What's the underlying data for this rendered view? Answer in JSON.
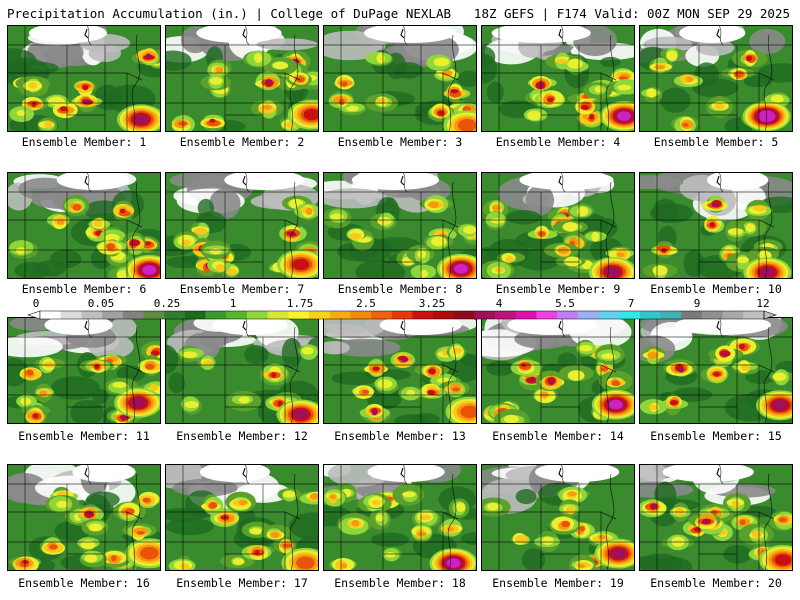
{
  "header": {
    "left_text": "Precipitation Accumulation (in.) | College of DuPage NEXLAB",
    "right_text": "18Z GEFS | F174 Valid: 00Z MON SEP 29 2025"
  },
  "legend": {
    "tick_labels": [
      "0",
      "0.05",
      "0.25",
      "1",
      "1.75",
      "2.5",
      "3.25",
      "4",
      "5.5",
      "7",
      "9",
      "12"
    ],
    "colors": [
      "#ffffff",
      "#dcdcdc",
      "#bebebe",
      "#a0a0a0",
      "#828282",
      "#5a8e3c",
      "#2f7d32",
      "#1e6b1e",
      "#3a9a2a",
      "#55b82a",
      "#8fd63a",
      "#d8e830",
      "#f5f52a",
      "#f9d21a",
      "#f7ad10",
      "#f58a0a",
      "#f2620a",
      "#e63a0a",
      "#d01010",
      "#b00a0a",
      "#900a1a",
      "#a0105a",
      "#c0107a",
      "#e010b0",
      "#f040e0",
      "#c07ef0",
      "#9ab0f0",
      "#60d0f0",
      "#30e8e8",
      "#30c8c8",
      "#40b0b0",
      "#7a7a7a",
      "#909090",
      "#a8a8a8",
      "#c0c0c0"
    ]
  },
  "members": [
    {
      "label": "Ensemble Member: 1"
    },
    {
      "label": "Ensemble Member: 2"
    },
    {
      "label": "Ensemble Member: 3"
    },
    {
      "label": "Ensemble Member: 4"
    },
    {
      "label": "Ensemble Member: 5"
    },
    {
      "label": "Ensemble Member: 6"
    },
    {
      "label": "Ensemble Member: 7"
    },
    {
      "label": "Ensemble Member: 8"
    },
    {
      "label": "Ensemble Member: 9"
    },
    {
      "label": "Ensemble Member: 10"
    },
    {
      "label": "Ensemble Member: 11"
    },
    {
      "label": "Ensemble Member: 12"
    },
    {
      "label": "Ensemble Member: 13"
    },
    {
      "label": "Ensemble Member: 14"
    },
    {
      "label": "Ensemble Member: 15"
    },
    {
      "label": "Ensemble Member: 16"
    },
    {
      "label": "Ensemble Member: 17"
    },
    {
      "label": "Ensemble Member: 18"
    },
    {
      "label": "Ensemble Member: 19"
    },
    {
      "label": "Ensemble Member: 20"
    }
  ]
}
